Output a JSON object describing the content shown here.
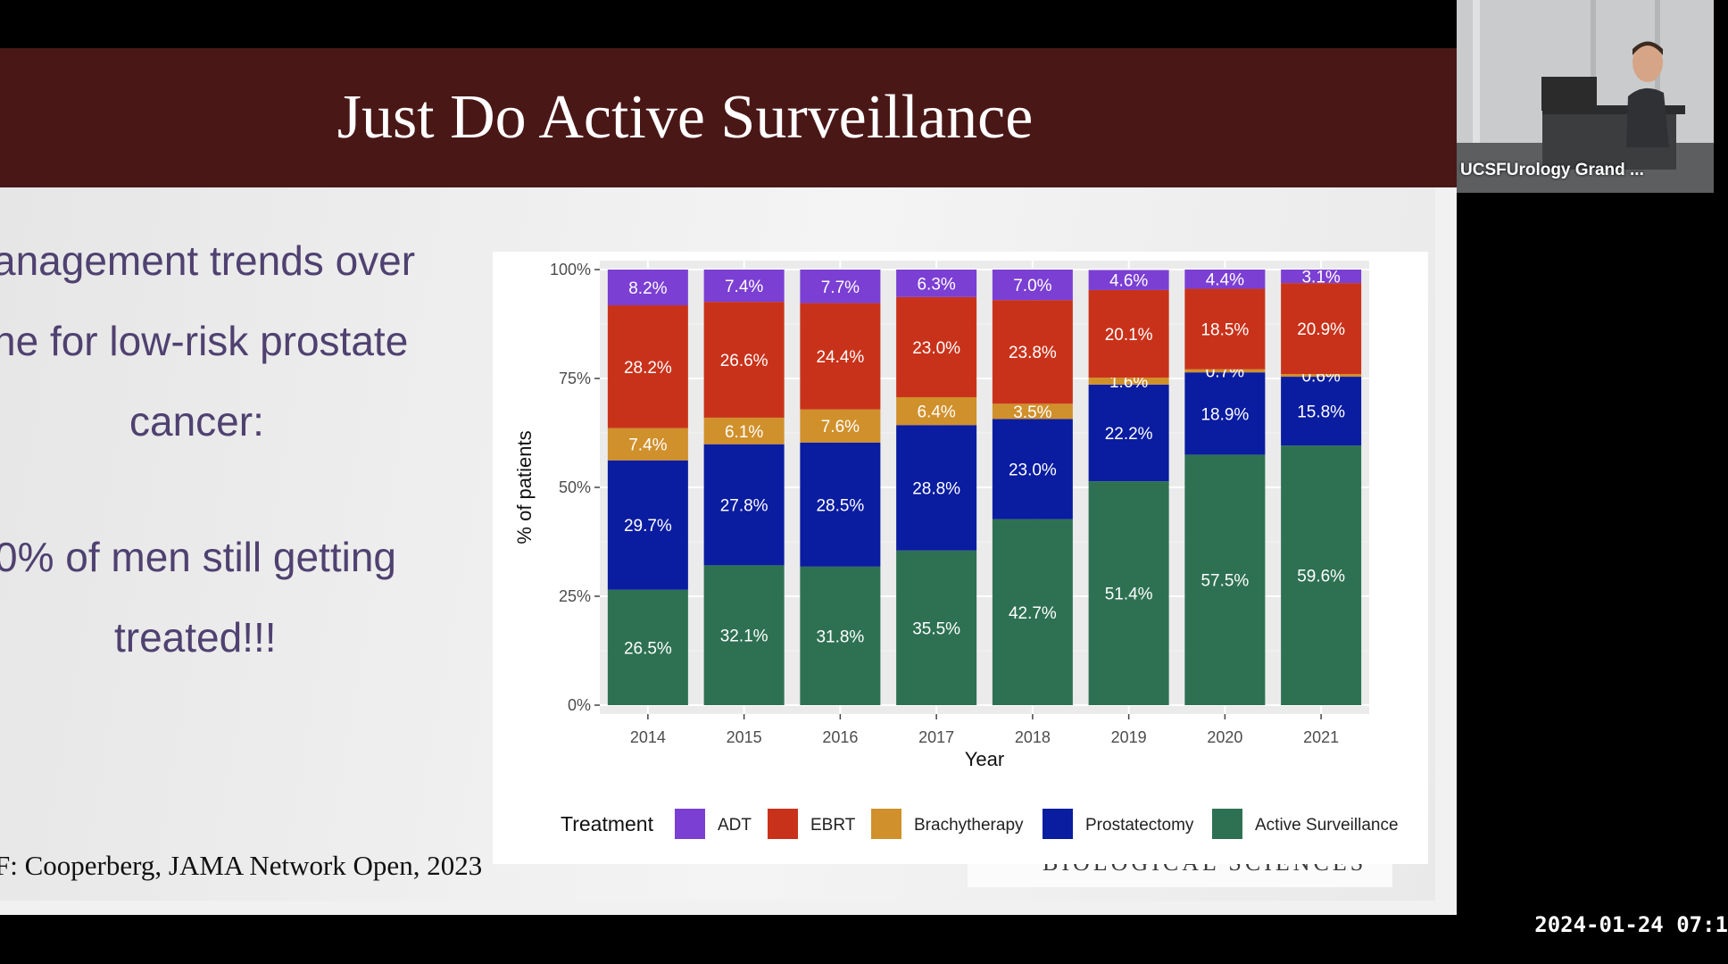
{
  "slide": {
    "title": "Just Do Active Surveillance",
    "bullets": [
      "anagement trends over",
      "ne for low-risk prostate",
      "cancer:",
      "0% of men still getting",
      "treated!!!"
    ],
    "reference": "F: Cooperberg, JAMA Network Open, 2023",
    "logo_text": "BIOLOGICAL SCIENCES"
  },
  "webcam": {
    "name": "UCSFUrology Grand ..."
  },
  "timestamp": "2024-01-24 07:1",
  "chart_data": {
    "type": "bar",
    "stacked": true,
    "categories": [
      "2014",
      "2015",
      "2016",
      "2017",
      "2018",
      "2019",
      "2020",
      "2021"
    ],
    "series": [
      {
        "name": "Active Surveillance",
        "color": "#2e7152",
        "values": [
          26.5,
          32.1,
          31.8,
          35.5,
          42.7,
          51.4,
          57.5,
          59.6
        ],
        "labels": [
          "26.5%",
          "32.1%",
          "31.8%",
          "35.5%",
          "42.7%",
          "51.4%",
          "57.5%",
          "59.6%"
        ]
      },
      {
        "name": "Prostatectomy",
        "color": "#0a1ca0",
        "values": [
          29.7,
          27.8,
          28.5,
          28.8,
          23.0,
          22.2,
          18.9,
          15.8
        ],
        "labels": [
          "29.7%",
          "27.8%",
          "28.5%",
          "28.8%",
          "23.0%",
          "22.2%",
          "18.9%",
          "15.8%"
        ]
      },
      {
        "name": "Brachytherapy",
        "color": "#d0902b",
        "values": [
          7.4,
          6.1,
          7.6,
          6.4,
          3.5,
          1.6,
          0.7,
          0.6
        ],
        "labels": [
          "7.4%",
          "6.1%",
          "7.6%",
          "6.4%",
          "3.5%",
          "1.6%",
          "0.7%",
          "0.6%"
        ]
      },
      {
        "name": "EBRT",
        "color": "#c9321a",
        "values": [
          28.2,
          26.6,
          24.4,
          23.0,
          23.8,
          20.1,
          18.5,
          20.9
        ],
        "labels": [
          "28.2%",
          "26.6%",
          "24.4%",
          "23.0%",
          "23.8%",
          "20.1%",
          "18.5%",
          "20.9%"
        ]
      },
      {
        "name": "ADT",
        "color": "#7b3fd3",
        "values": [
          8.2,
          7.4,
          7.7,
          6.3,
          7.0,
          4.6,
          4.4,
          3.1
        ],
        "labels": [
          "8.2%",
          "7.4%",
          "7.7%",
          "6.3%",
          "7.0%",
          "4.6%",
          "4.4%",
          "3.1%"
        ]
      }
    ],
    "legend_order": [
      "ADT",
      "EBRT",
      "Brachytherapy",
      "Prostatectomy",
      "Active Surveillance"
    ],
    "legend_title": "Treatment",
    "legend_position": "bottom",
    "xlabel": "Year",
    "ylabel": "% of patients",
    "yticks": [
      "0%",
      "25%",
      "50%",
      "75%",
      "100%"
    ],
    "ylim": [
      0,
      100
    ],
    "grid": true
  }
}
